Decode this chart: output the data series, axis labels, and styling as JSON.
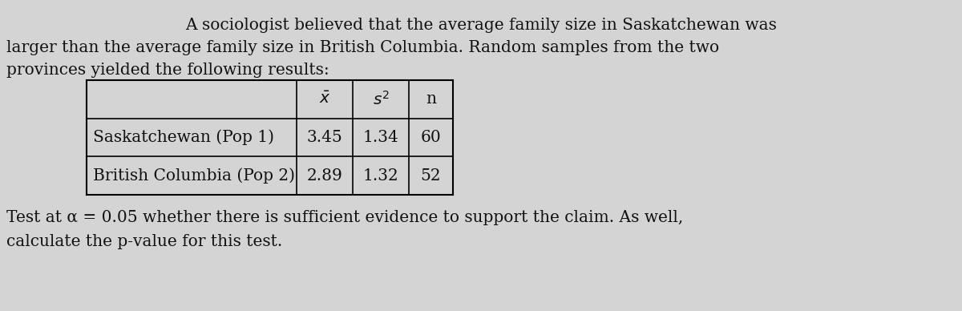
{
  "background_color": "#d4d4d4",
  "line1": "A sociologist believed that the average family size in Saskatchewan was",
  "line2": "larger than the average family size in British Columbia. Random samples from the two",
  "line3": "provinces yielded the following results:",
  "line4": "Test at α = 0.05 whether there is sufficient evidence to support the claim. As well,",
  "line5": "calculate the p-value for this test.",
  "col_headers": [
    "$\\bar{x}$",
    "$s^2$",
    "n"
  ],
  "row_labels": [
    "Saskatchewan (Pop 1)",
    "British Columbia (Pop 2)"
  ],
  "data": [
    [
      "3.45",
      "1.34",
      "60"
    ],
    [
      "2.89",
      "1.32",
      "52"
    ]
  ],
  "font_size": 14.5,
  "text_color": "#111111"
}
